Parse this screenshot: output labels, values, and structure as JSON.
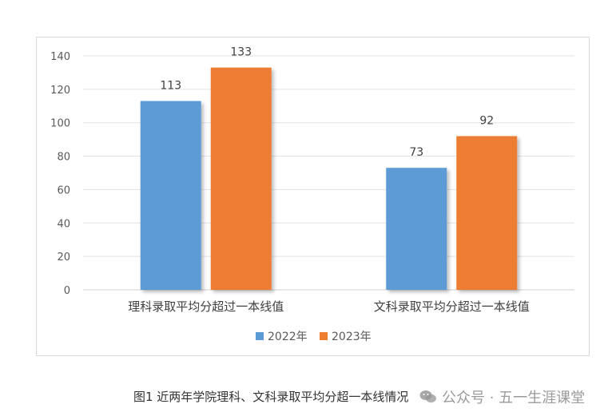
{
  "chart_data": {
    "type": "bar",
    "categories": [
      "理科录取平均分超过一本线值",
      "文科录取平均分超过一本线值"
    ],
    "series": [
      {
        "name": "2022年",
        "values": [
          113,
          73
        ],
        "color": "#5b9bd5"
      },
      {
        "name": "2023年",
        "values": [
          133,
          92
        ],
        "color": "#ed7d31"
      }
    ],
    "ylim": [
      0,
      140
    ],
    "yticks": [
      0,
      20,
      40,
      60,
      80,
      100,
      120,
      140
    ],
    "grid": true,
    "legend_position": "bottom",
    "data_labels": true
  },
  "caption": "图1 近两年学院理科、文科录取平均分超一本线情况",
  "watermark": "公众号 · 五一生涯课堂"
}
